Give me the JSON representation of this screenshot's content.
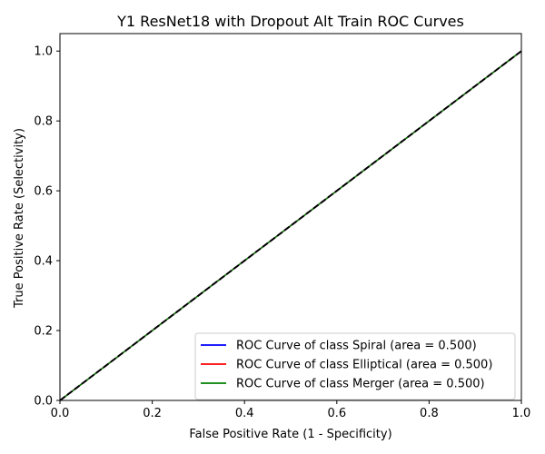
{
  "chart_data": {
    "type": "line",
    "title": "Y1 ResNet18 with Dropout Alt Train ROC Curves",
    "xlabel": "False Positive Rate (1 - Specificity)",
    "ylabel": "True Positive Rate (Selectivity)",
    "xlim": [
      0.0,
      1.0
    ],
    "ylim": [
      0.0,
      1.05
    ],
    "xticks": [
      "0.0",
      "0.2",
      "0.4",
      "0.6",
      "0.8",
      "1.0"
    ],
    "yticks": [
      "0.0",
      "0.2",
      "0.4",
      "0.6",
      "0.8",
      "1.0"
    ],
    "grid": false,
    "legend_position": "lower-right",
    "series": [
      {
        "name": "ROC Curve of class Spiral (area = 0.500)",
        "color": "#0000ff",
        "x": [
          0.0,
          1.0
        ],
        "y": [
          0.0,
          1.0
        ]
      },
      {
        "name": "ROC Curve of class Elliptical (area = 0.500)",
        "color": "#ff0000",
        "x": [
          0.0,
          1.0
        ],
        "y": [
          0.0,
          1.0
        ]
      },
      {
        "name": "ROC Curve of class Merger (area = 0.500)",
        "color": "#008000",
        "x": [
          0.0,
          1.0
        ],
        "y": [
          0.0,
          1.0
        ]
      }
    ],
    "reference_line": {
      "x": [
        0.0,
        1.0
      ],
      "y": [
        0.0,
        1.0
      ],
      "color": "#000000",
      "style": "dashed"
    }
  }
}
